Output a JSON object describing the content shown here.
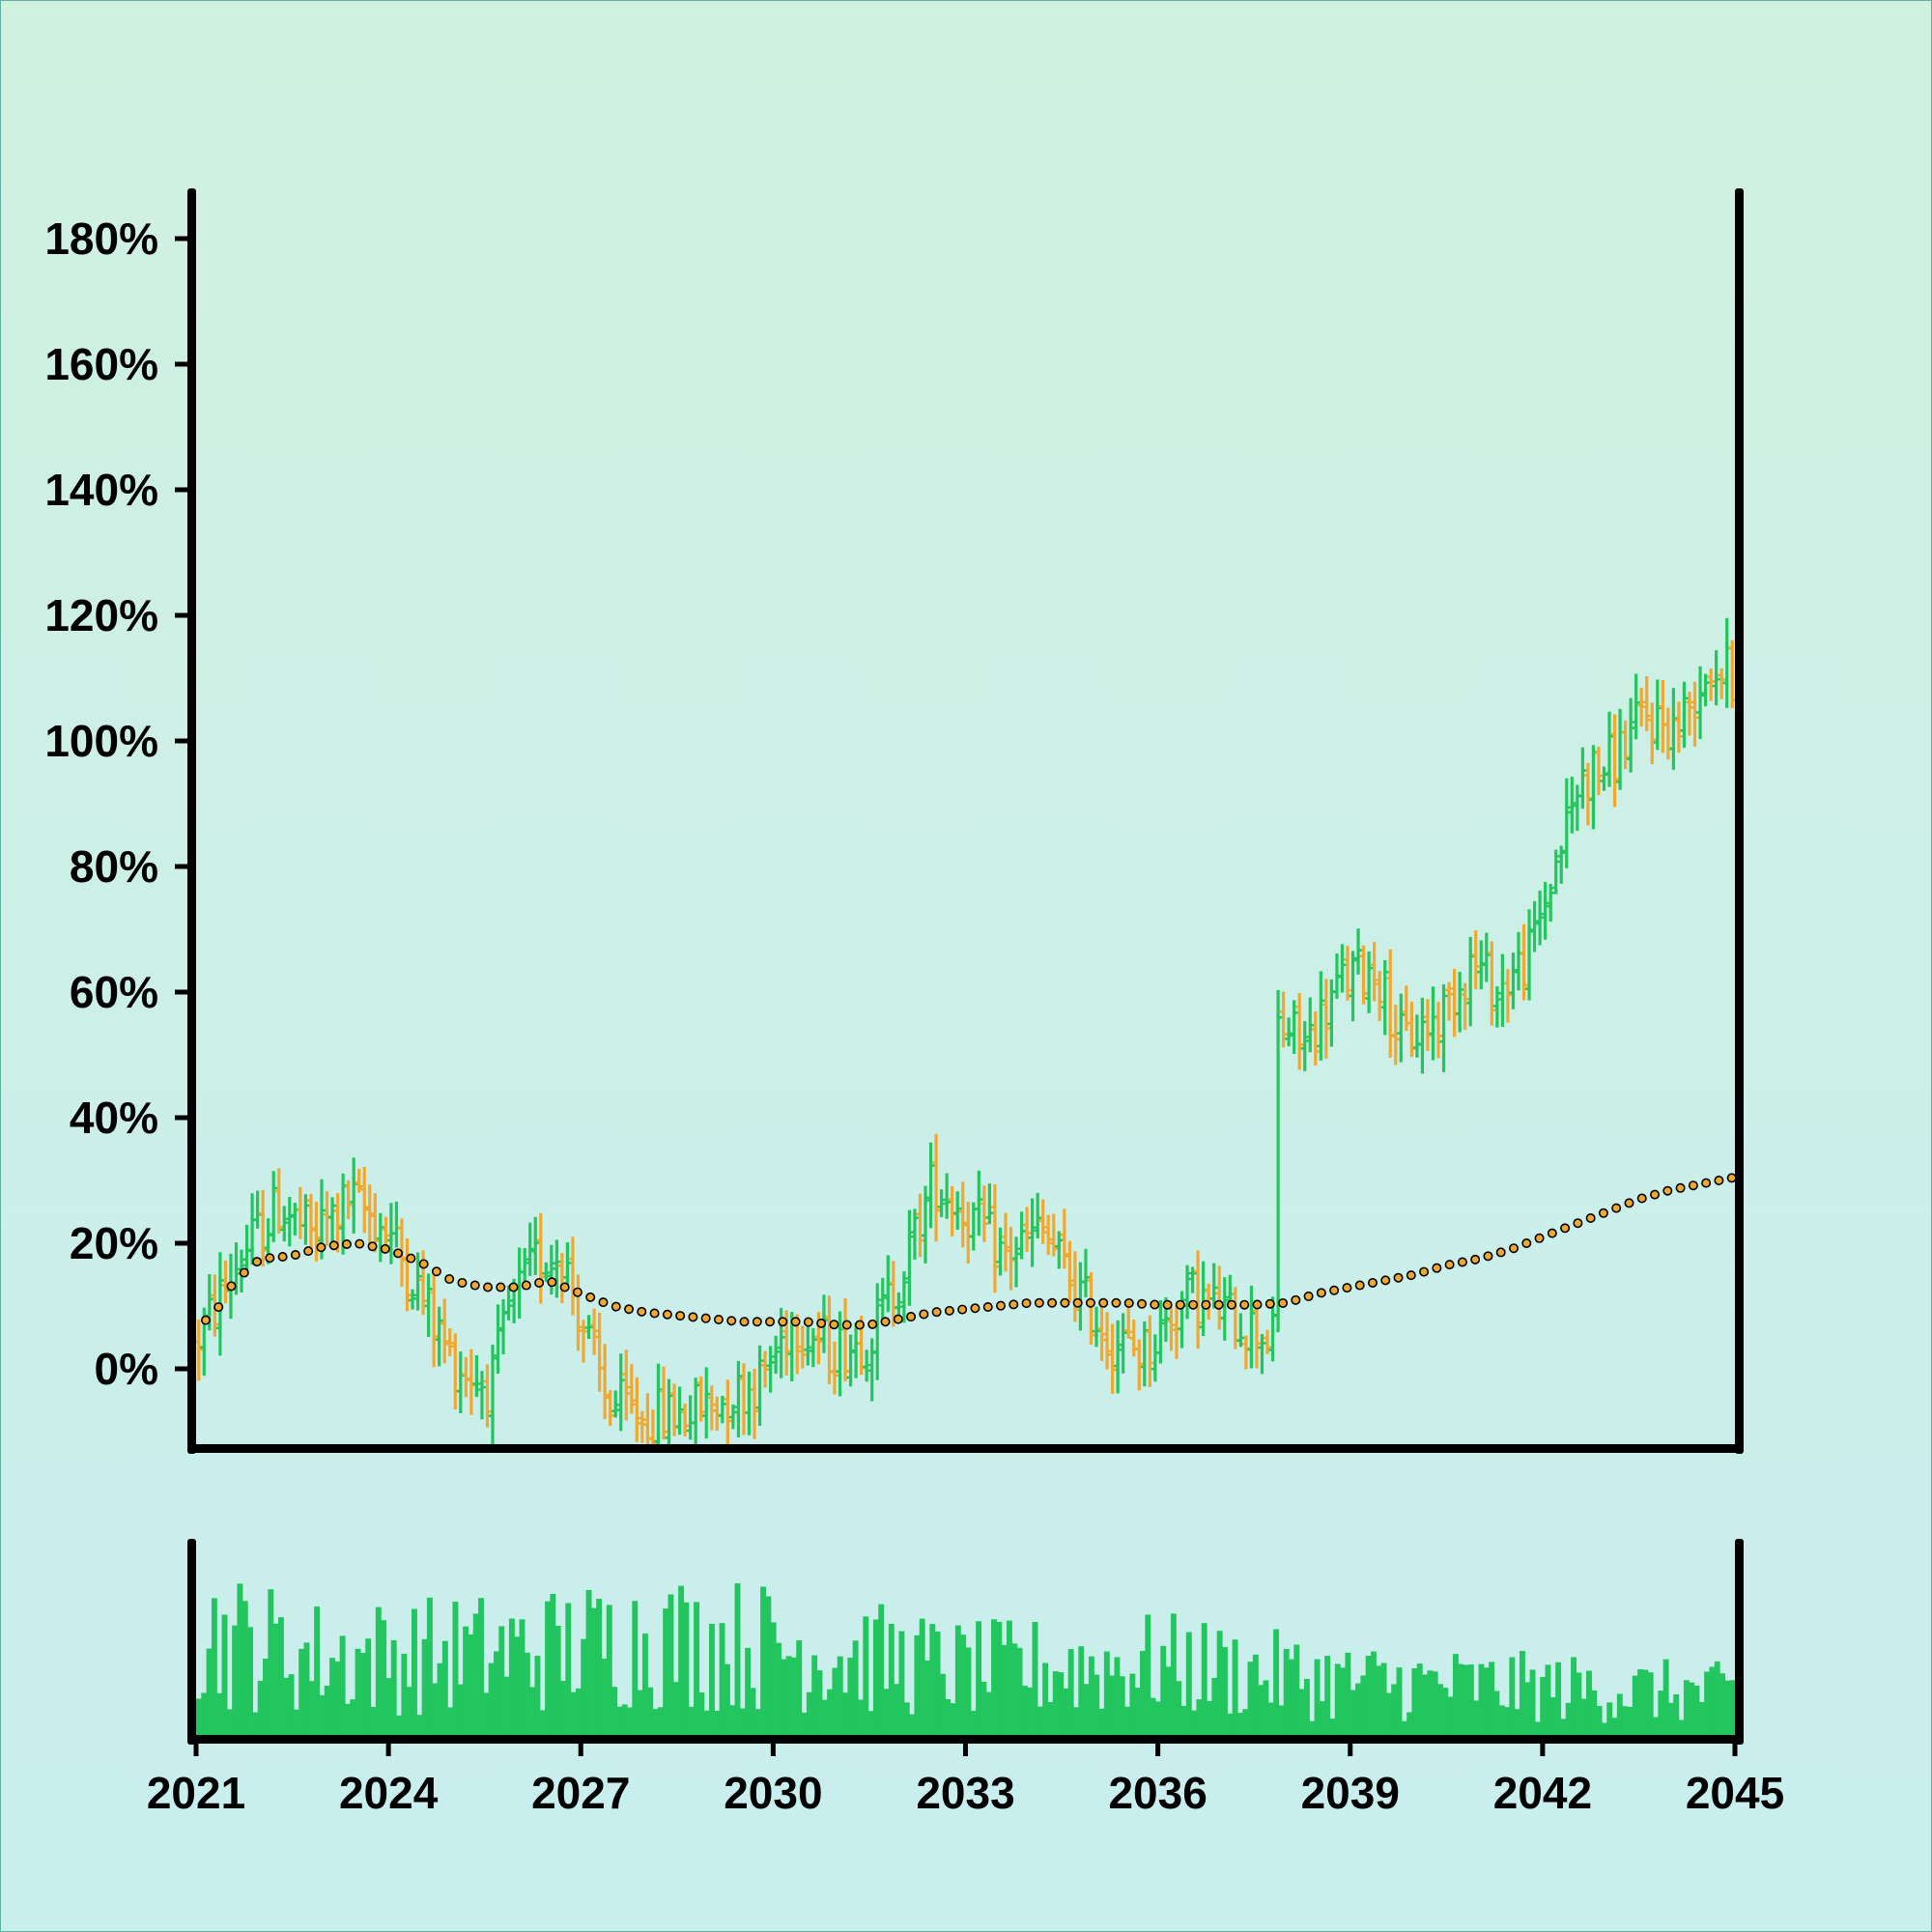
{
  "chart_data": {
    "type": "ohlc",
    "title": "",
    "xlabel": "",
    "ylabel": "",
    "x_ticks": [
      "2021",
      "2024",
      "2027",
      "2030",
      "2033",
      "2036",
      "2039",
      "2042",
      "2045"
    ],
    "x_range": [
      2021.0,
      2045.0
    ],
    "y_ticks": [
      "0%",
      "20%",
      "40%",
      "60%",
      "80%",
      "100%",
      "120%",
      "140%",
      "160%",
      "180%"
    ],
    "ylim_percent": [
      -12,
      188
    ],
    "grid": false,
    "legend": "none",
    "colors": {
      "up": "#22c55e",
      "down": "#f0a830",
      "moving_average_fill": "#f0a830",
      "moving_average_edge": "#000000",
      "volume": "#22c55e",
      "axes": "#000000"
    },
    "trend_anchors": [
      [
        2021.0,
        4
      ],
      [
        2021.3,
        10
      ],
      [
        2021.7,
        18
      ],
      [
        2022.3,
        26
      ],
      [
        2022.8,
        21
      ],
      [
        2023.4,
        27
      ],
      [
        2024.0,
        22
      ],
      [
        2024.5,
        12
      ],
      [
        2025.0,
        1
      ],
      [
        2025.6,
        -3
      ],
      [
        2025.9,
        10
      ],
      [
        2026.3,
        17
      ],
      [
        2026.7,
        19
      ],
      [
        2027.0,
        8
      ],
      [
        2027.4,
        -5
      ],
      [
        2028.0,
        -8
      ],
      [
        2028.6,
        -7
      ],
      [
        2029.2,
        -5
      ],
      [
        2029.8,
        -2
      ],
      [
        2030.3,
        8
      ],
      [
        2030.9,
        3
      ],
      [
        2031.5,
        5
      ],
      [
        2032.0,
        15
      ],
      [
        2032.5,
        30
      ],
      [
        2033.0,
        25
      ],
      [
        2033.6,
        18
      ],
      [
        2034.2,
        22
      ],
      [
        2034.7,
        13
      ],
      [
        2035.3,
        4
      ],
      [
        2035.8,
        3
      ],
      [
        2036.5,
        12
      ],
      [
        2037.2,
        8
      ],
      [
        2037.8,
        5
      ],
      [
        2037.83,
        55
      ],
      [
        2038.3,
        52
      ],
      [
        2038.9,
        62
      ],
      [
        2039.4,
        64
      ],
      [
        2039.8,
        52
      ],
      [
        2040.4,
        56
      ],
      [
        2040.9,
        65
      ],
      [
        2041.3,
        60
      ],
      [
        2041.8,
        66
      ],
      [
        2042.3,
        84
      ],
      [
        2042.6,
        94
      ],
      [
        2043.0,
        96
      ],
      [
        2043.6,
        104
      ],
      [
        2044.1,
        102
      ],
      [
        2044.6,
        112
      ],
      [
        2045.0,
        110
      ]
    ],
    "moving_average": [
      [
        2021.0,
        6.5
      ],
      [
        2021.3,
        9
      ],
      [
        2021.6,
        14
      ],
      [
        2022.0,
        17.5
      ],
      [
        2022.5,
        18
      ],
      [
        2023.0,
        19.5
      ],
      [
        2023.5,
        20
      ],
      [
        2024.0,
        19
      ],
      [
        2024.5,
        17
      ],
      [
        2025.0,
        14
      ],
      [
        2025.5,
        13
      ],
      [
        2026.0,
        13
      ],
      [
        2026.5,
        14
      ],
      [
        2027.0,
        12
      ],
      [
        2027.5,
        10
      ],
      [
        2028.0,
        9
      ],
      [
        2028.5,
        8.5
      ],
      [
        2029.0,
        8
      ],
      [
        2029.5,
        7.5
      ],
      [
        2030.0,
        7.5
      ],
      [
        2030.5,
        7.5
      ],
      [
        2031.0,
        7
      ],
      [
        2031.5,
        7
      ],
      [
        2032.0,
        8
      ],
      [
        2032.5,
        9
      ],
      [
        2033.0,
        9.5
      ],
      [
        2033.5,
        10
      ],
      [
        2034.0,
        10.5
      ],
      [
        2034.5,
        10.5
      ],
      [
        2035.0,
        10.5
      ],
      [
        2035.5,
        10.5
      ],
      [
        2036.0,
        10.2
      ],
      [
        2036.5,
        10.2
      ],
      [
        2037.0,
        10.2
      ],
      [
        2037.5,
        10.2
      ],
      [
        2038.0,
        10.5
      ],
      [
        2038.5,
        12
      ],
      [
        2039.0,
        13
      ],
      [
        2039.5,
        14
      ],
      [
        2040.0,
        15
      ],
      [
        2040.5,
        16.5
      ],
      [
        2041.0,
        17.5
      ],
      [
        2041.5,
        19
      ],
      [
        2042.0,
        21
      ],
      [
        2042.5,
        23
      ],
      [
        2043.0,
        25
      ],
      [
        2043.5,
        27
      ],
      [
        2044.0,
        28.5
      ],
      [
        2044.5,
        29.5
      ],
      [
        2045.0,
        30.5
      ]
    ],
    "bars_per_year": 12,
    "volume_profile": [
      [
        2021.0,
        0.85
      ],
      [
        2023.0,
        0.65
      ],
      [
        2026.0,
        0.7
      ],
      [
        2028.0,
        0.8
      ],
      [
        2030.0,
        0.75
      ],
      [
        2033.0,
        0.55
      ],
      [
        2036.0,
        0.6
      ],
      [
        2039.0,
        0.45
      ],
      [
        2042.0,
        0.4
      ],
      [
        2045.0,
        0.35
      ]
    ]
  }
}
